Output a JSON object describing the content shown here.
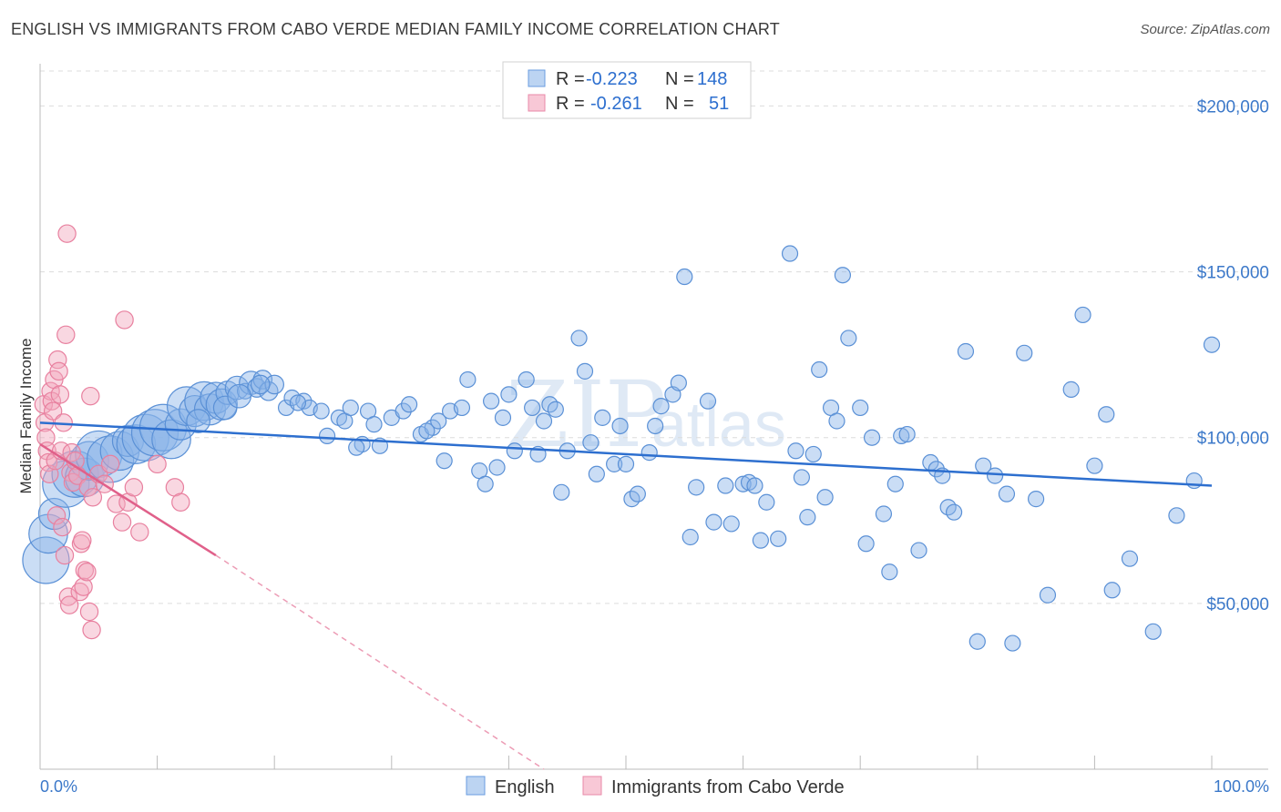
{
  "header": {
    "title": "ENGLISH VS IMMIGRANTS FROM CABO VERDE MEDIAN FAMILY INCOME CORRELATION CHART",
    "source": "Source: ZipAtlas.com"
  },
  "watermark": {
    "part1": "ZIP",
    "part2": "atlas"
  },
  "legend_top": {
    "rows": [
      {
        "r_label": "R =",
        "r_value": "-0.223",
        "n_label": "N =",
        "n_value": "148",
        "color": "#8ab4e8"
      },
      {
        "r_label": "R =",
        "r_value": "-0.261",
        "n_label": "N =",
        "n_value": "51",
        "color": "#f2a6bd"
      }
    ]
  },
  "legend_bottom": {
    "items": [
      {
        "label": "English",
        "color": "#8ab4e8"
      },
      {
        "label": "Immigrants from Cabo Verde",
        "color": "#f2a6bd"
      }
    ]
  },
  "chart_data": {
    "type": "scatter",
    "title": "ENGLISH VS IMMIGRANTS FROM CABO VERDE MEDIAN FAMILY INCOME CORRELATION CHART",
    "xlabel": "",
    "ylabel": "Median Family Income",
    "xlim": [
      0,
      100
    ],
    "ylim": [
      0,
      210000
    ],
    "x_tick_labels": [
      "0.0%",
      "100.0%"
    ],
    "y_ticks": [
      50000,
      100000,
      150000,
      200000
    ],
    "y_tick_labels": [
      "$50,000",
      "$100,000",
      "$150,000",
      "$200,000"
    ],
    "grid": true,
    "series": [
      {
        "name": "English",
        "color": "#8ab4e8",
        "stroke": "#5a90d6",
        "trend": {
          "x": [
            0,
            100
          ],
          "y": [
            104500,
            85500
          ],
          "color": "#2d6fcf"
        },
        "points": [
          [
            0.5,
            63000,
            3
          ],
          [
            0.7,
            71000,
            2.5
          ],
          [
            1.2,
            77000,
            2
          ],
          [
            2.2,
            86000,
            3
          ],
          [
            3.0,
            89000,
            3
          ],
          [
            3.8,
            88000,
            2.5
          ],
          [
            4.2,
            93000,
            2.5
          ],
          [
            5.0,
            95000,
            3
          ],
          [
            6.0,
            93500,
            3
          ],
          [
            6.8,
            96000,
            2.5
          ],
          [
            7.5,
            99000,
            2
          ],
          [
            8.2,
            98000,
            2.5
          ],
          [
            9.0,
            100000,
            3
          ],
          [
            9.8,
            101500,
            3
          ],
          [
            10.5,
            103000,
            3
          ],
          [
            11.2,
            99500,
            2.5
          ],
          [
            12.0,
            104000,
            2
          ],
          [
            12.5,
            109500,
            2.5
          ],
          [
            13.2,
            108000,
            2
          ],
          [
            14.0,
            111000,
            2.5
          ],
          [
            14.5,
            108500,
            2
          ],
          [
            15.0,
            112000,
            2
          ],
          [
            15.5,
            110000,
            2
          ],
          [
            16.0,
            113500,
            1.5
          ],
          [
            16.8,
            115000,
            1.5
          ],
          [
            17.5,
            114000,
            1
          ],
          [
            18.0,
            116500,
            1.5
          ],
          [
            18.5,
            115000,
            1.2
          ],
          [
            19.0,
            117500,
            1.2
          ],
          [
            19.5,
            114000,
            1.2
          ],
          [
            20.0,
            116000,
            1.2
          ],
          [
            21.0,
            109000,
            1
          ],
          [
            21.5,
            112000,
            1
          ],
          [
            22.5,
            111000,
            1
          ],
          [
            23.0,
            109000,
            1
          ],
          [
            24.0,
            108000,
            1
          ],
          [
            24.5,
            100500,
            1
          ],
          [
            25.5,
            106000,
            1
          ],
          [
            26.0,
            105000,
            1
          ],
          [
            26.5,
            109000,
            1
          ],
          [
            27.5,
            98000,
            1
          ],
          [
            28.0,
            108000,
            1
          ],
          [
            28.5,
            104000,
            1
          ],
          [
            29.0,
            97500,
            1
          ],
          [
            30.0,
            106000,
            1
          ],
          [
            31.0,
            108000,
            1
          ],
          [
            31.5,
            110000,
            1
          ],
          [
            32.5,
            101000,
            1
          ],
          [
            33.5,
            103000,
            1
          ],
          [
            34.0,
            105000,
            1
          ],
          [
            34.5,
            93000,
            1
          ],
          [
            35.0,
            108000,
            1
          ],
          [
            36.0,
            109000,
            1
          ],
          [
            36.5,
            117500,
            1
          ],
          [
            37.5,
            90000,
            1
          ],
          [
            38.0,
            86000,
            1
          ],
          [
            38.5,
            111000,
            1
          ],
          [
            39.0,
            91000,
            1
          ],
          [
            39.5,
            106000,
            1
          ],
          [
            40.0,
            113000,
            1
          ],
          [
            40.5,
            96000,
            1
          ],
          [
            41.5,
            117500,
            1
          ],
          [
            42.0,
            109000,
            1
          ],
          [
            43.0,
            105000,
            1
          ],
          [
            43.5,
            110000,
            1
          ],
          [
            44.0,
            108500,
            1
          ],
          [
            44.5,
            83500,
            1
          ],
          [
            45.0,
            96000,
            1
          ],
          [
            46.0,
            130000,
            1
          ],
          [
            46.5,
            120000,
            1
          ],
          [
            47.0,
            98500,
            1
          ],
          [
            47.5,
            89000,
            1
          ],
          [
            48.0,
            106000,
            1
          ],
          [
            49.0,
            92000,
            1
          ],
          [
            49.5,
            103500,
            1
          ],
          [
            50.0,
            92000,
            1
          ],
          [
            50.5,
            81500,
            1
          ],
          [
            51.0,
            83000,
            1
          ],
          [
            52.0,
            95500,
            1
          ],
          [
            52.5,
            103500,
            1
          ],
          [
            53.0,
            109500,
            1
          ],
          [
            54.0,
            113000,
            1
          ],
          [
            54.5,
            116500,
            1
          ],
          [
            55.0,
            148500,
            1
          ],
          [
            55.5,
            70000,
            1
          ],
          [
            56.0,
            85000,
            1
          ],
          [
            57.0,
            111000,
            1
          ],
          [
            57.5,
            74500,
            1
          ],
          [
            58.5,
            85500,
            1
          ],
          [
            59.0,
            74000,
            1
          ],
          [
            60.0,
            86000,
            1
          ],
          [
            60.5,
            86500,
            1
          ],
          [
            61.0,
            85500,
            1
          ],
          [
            61.5,
            69000,
            1
          ],
          [
            62.0,
            80500,
            1
          ],
          [
            63.0,
            69500,
            1
          ],
          [
            64.0,
            155500,
            1
          ],
          [
            64.5,
            96000,
            1
          ],
          [
            65.0,
            88000,
            1
          ],
          [
            65.5,
            76000,
            1
          ],
          [
            66.0,
            95000,
            1
          ],
          [
            66.5,
            120500,
            1
          ],
          [
            67.0,
            82000,
            1
          ],
          [
            67.5,
            109000,
            1
          ],
          [
            68.0,
            105000,
            1
          ],
          [
            68.5,
            149000,
            1
          ],
          [
            69.0,
            130000,
            1
          ],
          [
            70.0,
            109000,
            1
          ],
          [
            70.5,
            68000,
            1
          ],
          [
            71.0,
            100000,
            1
          ],
          [
            72.0,
            77000,
            1
          ],
          [
            72.5,
            59500,
            1
          ],
          [
            73.0,
            86000,
            1
          ],
          [
            73.5,
            100500,
            1
          ],
          [
            74.0,
            101000,
            1
          ],
          [
            75.0,
            66000,
            1
          ],
          [
            76.0,
            92500,
            1
          ],
          [
            76.5,
            90500,
            1
          ],
          [
            77.0,
            88500,
            1
          ],
          [
            77.5,
            79000,
            1
          ],
          [
            78.0,
            77500,
            1
          ],
          [
            79.0,
            126000,
            1
          ],
          [
            80.0,
            38500,
            1
          ],
          [
            80.5,
            91500,
            1
          ],
          [
            81.5,
            88500,
            1
          ],
          [
            82.5,
            83000,
            1
          ],
          [
            83.0,
            38000,
            1
          ],
          [
            84.0,
            125500,
            1
          ],
          [
            85.0,
            81500,
            1
          ],
          [
            86.0,
            52500,
            1
          ],
          [
            88.0,
            114500,
            1
          ],
          [
            89.0,
            137000,
            1
          ],
          [
            90.0,
            91500,
            1
          ],
          [
            91.0,
            107000,
            1
          ],
          [
            91.5,
            54000,
            1
          ],
          [
            93.0,
            63500,
            1
          ],
          [
            95.0,
            41500,
            1
          ],
          [
            97.0,
            76500,
            1
          ],
          [
            100.0,
            128000,
            1
          ],
          [
            98.5,
            87000,
            1
          ],
          [
            13.5,
            105000,
            1.5
          ],
          [
            15.8,
            109000,
            1.5
          ],
          [
            17.0,
            112500,
            1.5
          ],
          [
            18.8,
            116000,
            1.2
          ],
          [
            22.0,
            110500,
            1
          ],
          [
            27.0,
            97000,
            1
          ],
          [
            33.0,
            102000,
            1
          ],
          [
            42.5,
            95000,
            1
          ]
        ]
      },
      {
        "name": "Immigrants from Cabo Verde",
        "color": "#f2a6bd",
        "stroke": "#e8809f",
        "trend": {
          "x": [
            0,
            15
          ],
          "y": [
            98000,
            64500
          ],
          "dash_to": [
            43,
            0
          ],
          "color": "#e0608a"
        },
        "points": [
          [
            0.3,
            110000,
            1.2
          ],
          [
            0.4,
            104500,
            1.2
          ],
          [
            0.5,
            100000,
            1.2
          ],
          [
            0.6,
            96000,
            1.2
          ],
          [
            0.7,
            92500,
            1.2
          ],
          [
            0.8,
            89000,
            1.2
          ],
          [
            0.9,
            114000,
            1.2
          ],
          [
            1.0,
            111000,
            1.2
          ],
          [
            1.1,
            108000,
            1.2
          ],
          [
            1.2,
            117500,
            1.2
          ],
          [
            1.3,
            93000,
            1.2
          ],
          [
            1.4,
            76500,
            1.2
          ],
          [
            1.5,
            123500,
            1.2
          ],
          [
            1.6,
            120000,
            1.2
          ],
          [
            1.7,
            113000,
            1.2
          ],
          [
            1.8,
            96000,
            1.2
          ],
          [
            1.9,
            73000,
            1.2
          ],
          [
            2.0,
            104500,
            1.2
          ],
          [
            2.1,
            64500,
            1.2
          ],
          [
            2.2,
            131000,
            1.2
          ],
          [
            2.3,
            161500,
            1.2
          ],
          [
            2.4,
            52000,
            1.2
          ],
          [
            2.5,
            49500,
            1.2
          ],
          [
            2.6,
            89500,
            1.2
          ],
          [
            2.7,
            95500,
            1.2
          ],
          [
            2.8,
            86500,
            1.2
          ],
          [
            3.0,
            93000,
            1.2
          ],
          [
            3.2,
            88500,
            1.2
          ],
          [
            3.4,
            53500,
            1.2
          ],
          [
            3.5,
            68000,
            1.2
          ],
          [
            3.6,
            69000,
            1.2
          ],
          [
            3.7,
            55000,
            1.2
          ],
          [
            3.8,
            60000,
            1.2
          ],
          [
            4.0,
            59500,
            1.2
          ],
          [
            4.1,
            85000,
            1.2
          ],
          [
            4.2,
            47500,
            1.2
          ],
          [
            4.3,
            112500,
            1.2
          ],
          [
            4.4,
            42000,
            1.2
          ],
          [
            4.5,
            82000,
            1.2
          ],
          [
            5.0,
            89000,
            1.2
          ],
          [
            5.5,
            86000,
            1.2
          ],
          [
            6.0,
            92000,
            1.2
          ],
          [
            6.5,
            80000,
            1.2
          ],
          [
            7.0,
            74500,
            1.2
          ],
          [
            7.2,
            135500,
            1.2
          ],
          [
            7.5,
            80500,
            1.2
          ],
          [
            8.0,
            85000,
            1.2
          ],
          [
            8.5,
            71500,
            1.2
          ],
          [
            10.0,
            92000,
            1.2
          ],
          [
            11.5,
            85000,
            1.2
          ],
          [
            12.0,
            80500,
            1.2
          ]
        ]
      }
    ]
  }
}
